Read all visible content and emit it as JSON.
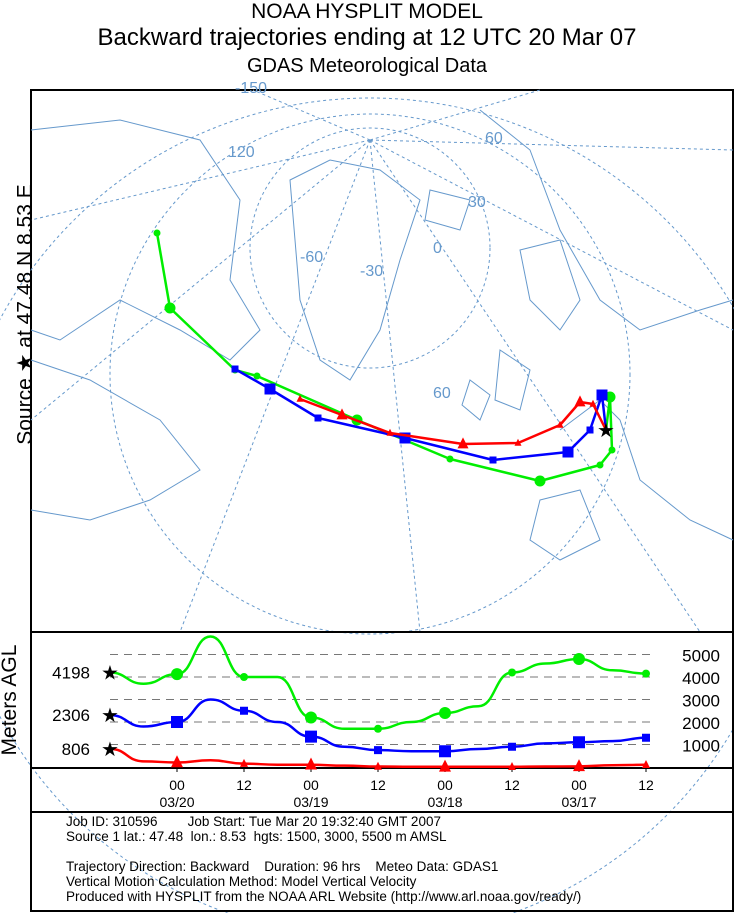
{
  "title": {
    "line1": "NOAA HYSPLIT MODEL",
    "line2": "Backward trajectories ending at 12 UTC 20 Mar 07",
    "line3": "GDAS Meteorological Data"
  },
  "side_label": "Source ★ at 47.48 N 8.53 E",
  "map": {
    "grid_labels": [
      "-150",
      "120",
      "60",
      "30",
      "0",
      "-30",
      "-60",
      "60"
    ]
  },
  "colors": {
    "low": "#ff0000",
    "mid": "#0000ff",
    "high": "#00ee00",
    "grid": "#6699cc"
  },
  "chart_data": {
    "type": "line",
    "ylabel": "Meters AGL",
    "yticks": [
      "1000",
      "2000",
      "3000",
      "4000",
      "5000"
    ],
    "ylim": [
      0,
      5900
    ],
    "xlabel_hours_back": [
      0,
      96
    ],
    "xticks": [
      {
        "h": 12,
        "hour": "00",
        "date": "03/20"
      },
      {
        "h": 24,
        "hour": "12",
        "date": ""
      },
      {
        "h": 36,
        "hour": "00",
        "date": "03/19"
      },
      {
        "h": 48,
        "hour": "12",
        "date": ""
      },
      {
        "h": 60,
        "hour": "00",
        "date": "03/18"
      },
      {
        "h": 72,
        "hour": "12",
        "date": ""
      },
      {
        "h": 84,
        "hour": "00",
        "date": "03/17"
      },
      {
        "h": 96,
        "hour": "12",
        "date": ""
      }
    ],
    "start_labels": [
      "4198",
      "2306",
      "806"
    ],
    "series": [
      {
        "name": "5500 m AMSL",
        "color": "#00ee00",
        "hours_back": [
          0,
          6,
          12,
          18,
          24,
          30,
          36,
          42,
          48,
          54,
          60,
          66,
          72,
          78,
          84,
          90,
          96
        ],
        "values": [
          4198,
          3700,
          4130,
          5800,
          4000,
          4000,
          2200,
          1700,
          1700,
          2000,
          2400,
          2700,
          4200,
          4600,
          4800,
          4300,
          4150
        ]
      },
      {
        "name": "3000 m AMSL",
        "color": "#0000ff",
        "hours_back": [
          0,
          6,
          12,
          18,
          24,
          30,
          36,
          42,
          48,
          54,
          60,
          66,
          72,
          78,
          84,
          90,
          96
        ],
        "values": [
          2306,
          1800,
          2000,
          3000,
          2500,
          2000,
          1350,
          900,
          750,
          700,
          700,
          800,
          900,
          1050,
          1100,
          1150,
          1300
        ]
      },
      {
        "name": "1500 m AMSL",
        "color": "#ff0000",
        "hours_back": [
          0,
          6,
          12,
          18,
          24,
          30,
          36,
          42,
          48,
          54,
          60,
          66,
          72,
          78,
          84,
          90,
          96
        ],
        "values": [
          806,
          250,
          200,
          300,
          150,
          100,
          100,
          60,
          20,
          10,
          10,
          10,
          10,
          20,
          30,
          80,
          100
        ]
      }
    ]
  },
  "info": {
    "line1": "Job ID: 310596        Job Start: Tue Mar 20 19:32:40 GMT 2007",
    "line2": "Source 1 lat.: 47.48  lon.: 8.53  hgts: 1500, 3000, 5500 m AMSL",
    "line3": "Trajectory Direction: Backward    Duration: 96 hrs    Meteo Data: GDAS1",
    "line4": "Vertical Motion Calculation Method: Model Vertical Velocity",
    "line5": "Produced with HYSPLIT from the NOAA ARL Website (http://www.arl.noaa.gov/ready/)"
  }
}
